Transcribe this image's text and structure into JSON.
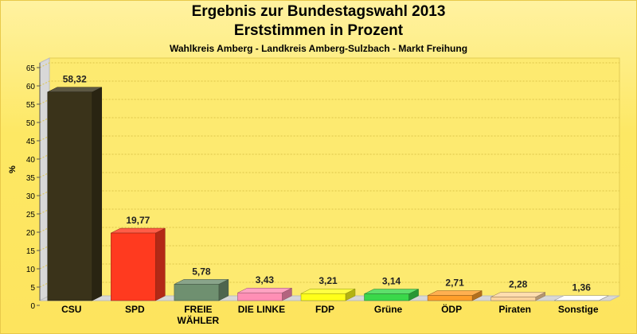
{
  "title": "Ergebnis zur Bundestagswahl 2013",
  "subtitle": "Erststimmen in Prozent",
  "subtitle2": "Wahlkreis Amberg - Landkreis Amberg-Sulzbach - Markt Freihung",
  "chart_data": {
    "type": "bar",
    "ylabel": "%",
    "ylim": [
      0,
      65
    ],
    "yticks": [
      0,
      5,
      10,
      15,
      20,
      25,
      30,
      35,
      40,
      45,
      50,
      55,
      60,
      65
    ],
    "grid": true,
    "categories": [
      [
        "CSU"
      ],
      [
        "SPD"
      ],
      [
        "FREIE",
        "WÄHLER"
      ],
      [
        "DIE LINKE"
      ],
      [
        "FDP"
      ],
      [
        "Grüne"
      ],
      [
        "ÖDP"
      ],
      [
        "Piraten"
      ],
      [
        "Sonstige"
      ]
    ],
    "values": [
      58.32,
      19.77,
      5.78,
      3.43,
      3.21,
      3.14,
      2.71,
      2.28,
      1.36
    ],
    "value_labels": [
      "58,32",
      "19,77",
      "5,78",
      "3,43",
      "3,21",
      "3,14",
      "2,71",
      "2,28",
      "1,36"
    ],
    "colors": [
      "#3a331a",
      "#ff3a1f",
      "#6f9070",
      "#ff8fb5",
      "#ffff1a",
      "#3ad84a",
      "#ff9f2a",
      "#ffd59e",
      "#ffffff"
    ]
  }
}
